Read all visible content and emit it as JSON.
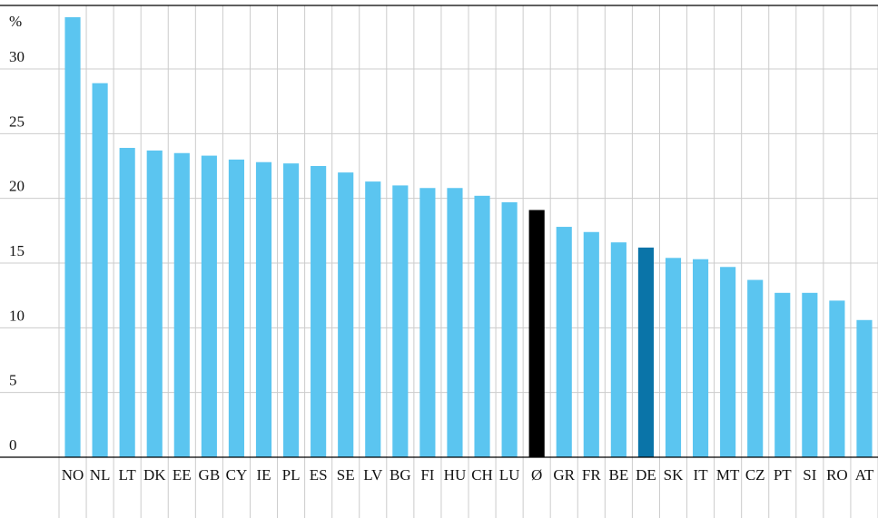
{
  "chart_data": {
    "type": "bar",
    "title": "",
    "xlabel": "",
    "ylabel": "",
    "unit_label": "%",
    "ylim": [
      0,
      34
    ],
    "yticks": [
      0,
      5,
      10,
      15,
      20,
      25,
      30
    ],
    "grid": true,
    "categories": [
      "NO",
      "NL",
      "LT",
      "DK",
      "EE",
      "GB",
      "CY",
      "IE",
      "PL",
      "ES",
      "SE",
      "LV",
      "BG",
      "FI",
      "HU",
      "CH",
      "LU",
      "Ø",
      "GR",
      "FR",
      "BE",
      "DE",
      "SK",
      "IT",
      "MT",
      "CZ",
      "PT",
      "SI",
      "RO",
      "AT"
    ],
    "values": [
      34.0,
      28.9,
      23.9,
      23.7,
      23.5,
      23.3,
      23.0,
      22.8,
      22.7,
      22.5,
      22.0,
      21.3,
      21.0,
      20.8,
      20.8,
      20.2,
      19.7,
      19.1,
      17.8,
      17.4,
      16.6,
      16.2,
      15.4,
      15.3,
      14.7,
      13.7,
      12.7,
      12.7,
      12.1,
      10.6
    ],
    "colors": {
      "default": "#5bc5f0",
      "average": "#000000",
      "highlight": "#0a74a8",
      "grid": "#cccccc",
      "axis": "#000000"
    },
    "bar_colors": {
      "Ø": "#000000",
      "DE": "#0a74a8"
    }
  }
}
